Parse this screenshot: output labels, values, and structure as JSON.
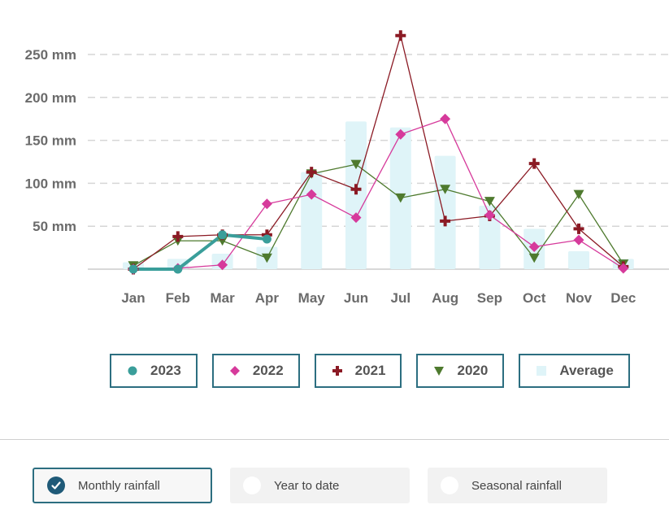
{
  "chart_data": {
    "type": "line",
    "categories": [
      "Jan",
      "Feb",
      "Mar",
      "Apr",
      "May",
      "Jun",
      "Jul",
      "Aug",
      "Sep",
      "Oct",
      "Nov",
      "Dec"
    ],
    "y_ticks": [
      "50 mm",
      "100 mm",
      "150 mm",
      "200 mm",
      "250 mm"
    ],
    "ylim": [
      0,
      275
    ],
    "grid": "horizontal dashed",
    "series": [
      {
        "name": "2023",
        "marker": "circle",
        "color": "#3a9e9a",
        "values": [
          0,
          0,
          40,
          35,
          null,
          null,
          null,
          null,
          null,
          null,
          null,
          null
        ]
      },
      {
        "name": "2022",
        "marker": "diamond",
        "color": "#d63a9b",
        "values": [
          0,
          1,
          5,
          76,
          87,
          60,
          157,
          175,
          63,
          26,
          34,
          1
        ]
      },
      {
        "name": "2021",
        "marker": "cross",
        "color": "#8b1a24",
        "values": [
          0,
          38,
          40,
          40,
          113,
          93,
          272,
          56,
          62,
          123,
          47,
          3
        ]
      },
      {
        "name": "2020",
        "marker": "triangle-down",
        "color": "#4e7a2e",
        "values": [
          4,
          33,
          33,
          13,
          111,
          122,
          83,
          93,
          79,
          13,
          87,
          6
        ]
      },
      {
        "name": "Average",
        "marker": "bar",
        "color": "#dff4f8",
        "values": [
          8,
          12,
          18,
          26,
          113,
          172,
          165,
          132,
          74,
          47,
          21,
          12
        ]
      }
    ]
  },
  "options": [
    {
      "label": "Monthly rainfall",
      "selected": true
    },
    {
      "label": "Year to date",
      "selected": false
    },
    {
      "label": "Seasonal rainfall",
      "selected": false
    }
  ]
}
